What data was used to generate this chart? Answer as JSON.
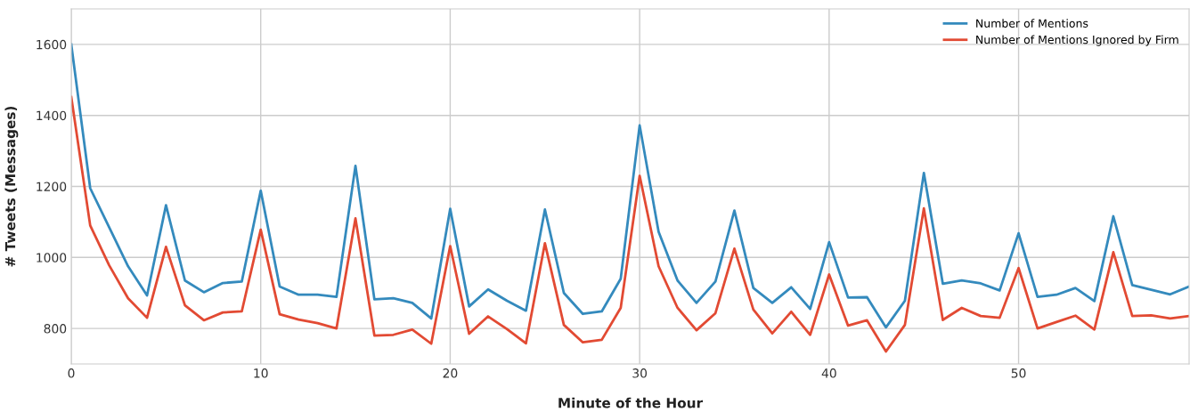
{
  "chart_data": {
    "type": "line",
    "xlabel": "Minute of the Hour",
    "ylabel": "# Tweets (Messages)",
    "x": [
      0,
      1,
      2,
      3,
      4,
      5,
      6,
      7,
      8,
      9,
      10,
      11,
      12,
      13,
      14,
      15,
      16,
      17,
      18,
      19,
      20,
      21,
      22,
      23,
      24,
      25,
      26,
      27,
      28,
      29,
      30,
      31,
      32,
      33,
      34,
      35,
      36,
      37,
      38,
      39,
      40,
      41,
      42,
      43,
      44,
      45,
      46,
      47,
      48,
      49,
      50,
      51,
      52,
      53,
      54,
      55,
      56,
      57,
      58,
      59
    ],
    "series": [
      {
        "name": "Number of Mentions",
        "color": "#348abd",
        "values": [
          1600,
          1195,
          1085,
          975,
          893,
          1147,
          935,
          902,
          928,
          932,
          1188,
          918,
          895,
          895,
          889,
          1258,
          882,
          885,
          872,
          828,
          1137,
          862,
          910,
          878,
          850,
          1135,
          900,
          841,
          848,
          940,
          1372,
          1072,
          935,
          872,
          932,
          1132,
          914,
          872,
          916,
          855,
          1043,
          887,
          888,
          803,
          878,
          1238,
          926,
          935,
          927,
          907,
          1068,
          889,
          895,
          914,
          877,
          1116,
          922,
          909,
          896,
          918
        ]
      },
      {
        "name": "Number of Mentions Ignored by Firm",
        "color": "#e24a33",
        "values": [
          1452,
          1090,
          978,
          885,
          830,
          1030,
          865,
          823,
          845,
          848,
          1078,
          840,
          825,
          815,
          800,
          1110,
          780,
          782,
          797,
          757,
          1032,
          785,
          834,
          798,
          758,
          1040,
          810,
          761,
          768,
          858,
          1230,
          975,
          858,
          795,
          843,
          1025,
          853,
          786,
          847,
          782,
          952,
          808,
          823,
          735,
          810,
          1138,
          824,
          858,
          835,
          830,
          970,
          800,
          818,
          836,
          797,
          1015,
          835,
          837,
          828,
          835
        ]
      }
    ],
    "xlim": [
      0,
      59
    ],
    "ylim": [
      700,
      1700
    ],
    "xticks": [
      0,
      10,
      20,
      30,
      40,
      50
    ],
    "yticks": [
      800,
      1000,
      1200,
      1400,
      1600
    ],
    "grid": true,
    "legend": "top right",
    "marker": "none",
    "line_style": "solid"
  }
}
